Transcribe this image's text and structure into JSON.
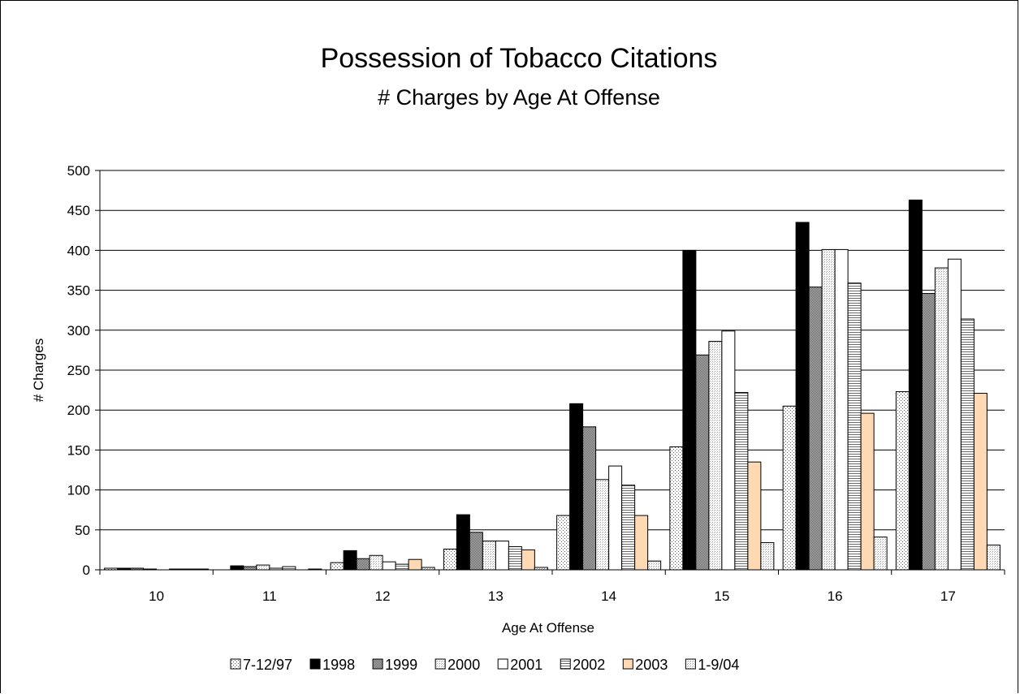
{
  "chart_data": {
    "type": "bar",
    "title": "Possession of Tobacco Citations",
    "subtitle": "# Charges by Age At Offense",
    "xlabel": "Age At Offense",
    "ylabel": "# Charges",
    "ylim": [
      0,
      500
    ],
    "yticks": [
      0,
      50,
      100,
      150,
      200,
      250,
      300,
      350,
      400,
      450,
      500
    ],
    "grid": true,
    "legend_position": "bottom",
    "categories": [
      "10",
      "11",
      "12",
      "13",
      "14",
      "15",
      "16",
      "17"
    ],
    "series": [
      {
        "name": "7-12/97",
        "fill": "dots",
        "color": "#ffffff",
        "values": [
          2,
          0,
          9,
          26,
          68,
          154,
          205,
          223
        ]
      },
      {
        "name": "1998",
        "fill": "solid",
        "color": "#000000",
        "values": [
          2,
          5,
          24,
          69,
          208,
          400,
          435,
          463
        ]
      },
      {
        "name": "1999",
        "fill": "dense-dots",
        "color": "#808080",
        "values": [
          2,
          4,
          14,
          47,
          179,
          269,
          354,
          346
        ]
      },
      {
        "name": "2000",
        "fill": "fine-dots",
        "color": "#eeeeee",
        "values": [
          1,
          6,
          18,
          36,
          113,
          286,
          401,
          378
        ]
      },
      {
        "name": "2001",
        "fill": "solid",
        "color": "#ffffff",
        "values": [
          0,
          2,
          10,
          36,
          130,
          299,
          401,
          389
        ]
      },
      {
        "name": "2002",
        "fill": "horizontal-lines",
        "color": "#d0d0d0",
        "values": [
          1,
          4,
          7,
          29,
          106,
          222,
          359,
          314
        ]
      },
      {
        "name": "2003",
        "fill": "solid",
        "color": "#ffd9b3",
        "values": [
          1,
          0,
          13,
          25,
          68,
          135,
          196,
          221
        ]
      },
      {
        "name": "1-9/04",
        "fill": "fine-dots",
        "color": "#dddddd",
        "values": [
          1,
          1,
          3,
          3,
          11,
          34,
          41,
          31
        ]
      }
    ]
  }
}
